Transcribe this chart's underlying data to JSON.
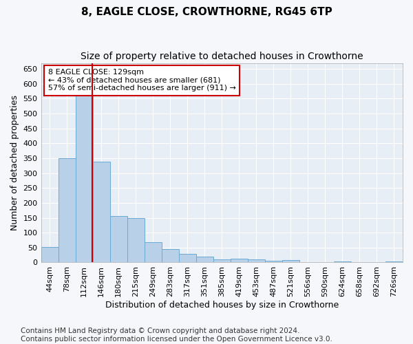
{
  "title1": "8, EAGLE CLOSE, CROWTHORNE, RG45 6TP",
  "title2": "Size of property relative to detached houses in Crowthorne",
  "xlabel": "Distribution of detached houses by size in Crowthorne",
  "ylabel": "Number of detached properties",
  "categories": [
    "44sqm",
    "78sqm",
    "112sqm",
    "146sqm",
    "180sqm",
    "215sqm",
    "249sqm",
    "283sqm",
    "317sqm",
    "351sqm",
    "385sqm",
    "419sqm",
    "453sqm",
    "487sqm",
    "521sqm",
    "556sqm",
    "590sqm",
    "624sqm",
    "658sqm",
    "692sqm",
    "726sqm"
  ],
  "values": [
    52,
    350,
    620,
    338,
    155,
    150,
    68,
    45,
    28,
    20,
    10,
    12,
    10,
    5,
    8,
    2,
    2,
    4,
    2,
    2,
    4
  ],
  "bar_color": "#b8d0e8",
  "bar_edge_color": "#6aaad4",
  "background_color": "#e8eef5",
  "fig_background_color": "#f5f7fa",
  "grid_color": "#ffffff",
  "red_line_color": "#cc0000",
  "red_line_x": 2.49,
  "annotation_text": "8 EAGLE CLOSE: 129sqm\n← 43% of detached houses are smaller (681)\n57% of semi-detached houses are larger (911) →",
  "annotation_box_color": "#cc0000",
  "ylim": [
    0,
    670
  ],
  "yticks": [
    0,
    50,
    100,
    150,
    200,
    250,
    300,
    350,
    400,
    450,
    500,
    550,
    600,
    650
  ],
  "title1_fontsize": 11,
  "title2_fontsize": 10,
  "xlabel_fontsize": 9,
  "ylabel_fontsize": 9,
  "tick_fontsize": 8,
  "annotation_fontsize": 8,
  "footnote_fontsize": 7.5,
  "footnote": "Contains HM Land Registry data © Crown copyright and database right 2024.\nContains public sector information licensed under the Open Government Licence v3.0."
}
